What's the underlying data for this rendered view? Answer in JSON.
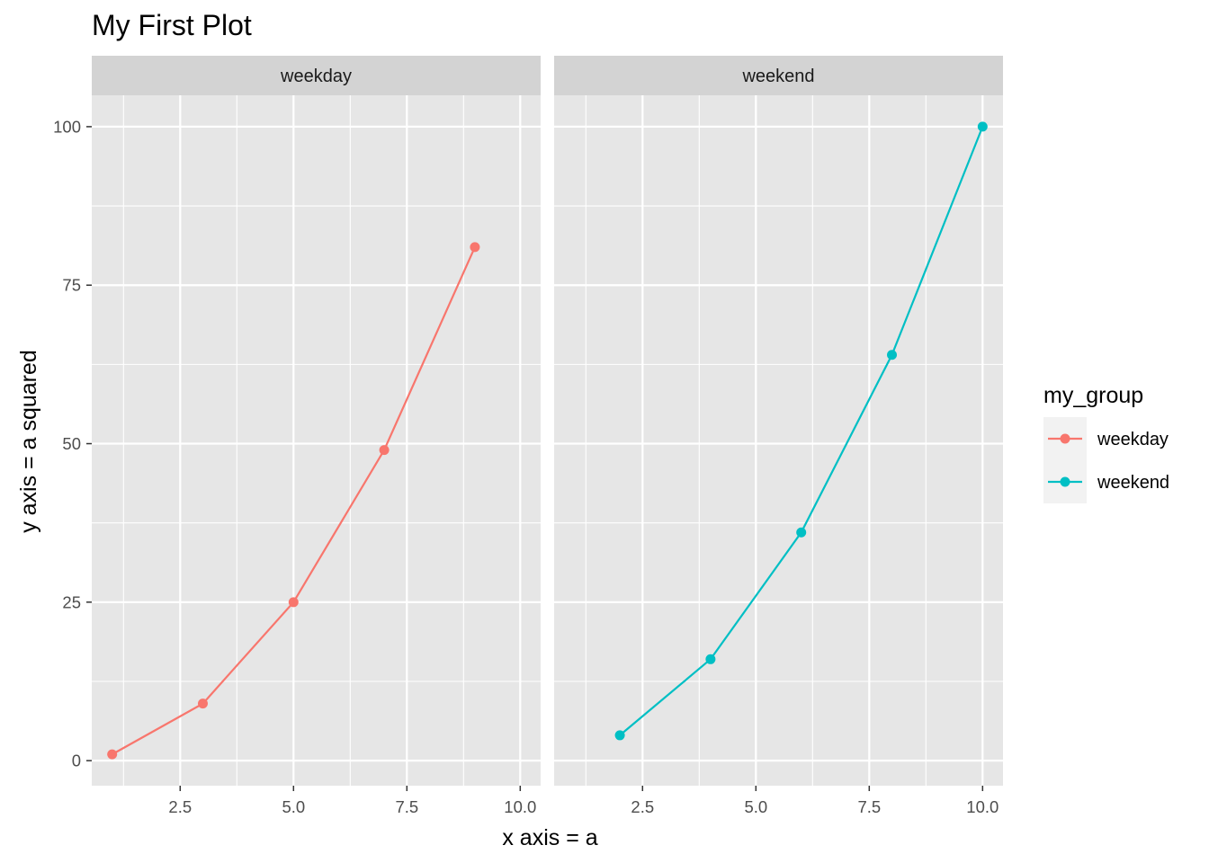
{
  "colors": {
    "panel_bg": "#e6e6e6",
    "strip_bg": "#d3d3d3",
    "grid": "#ffffff",
    "legend_key_bg": "#f2f2f2",
    "tick": "#333333"
  },
  "chart_data": {
    "type": "line",
    "title": "My First Plot",
    "xlabel": "x axis = a",
    "ylabel": "y axis = a squared",
    "xlim": [
      0.55,
      10.45
    ],
    "ylim": [
      -3.95,
      104.95
    ],
    "x_ticks": [
      2.5,
      5.0,
      7.5,
      10.0
    ],
    "x_tick_labels": [
      "2.5",
      "5.0",
      "7.5",
      "10.0"
    ],
    "x_minor": [
      1.25,
      3.75,
      6.25,
      8.75
    ],
    "y_ticks": [
      0,
      25,
      50,
      75,
      100
    ],
    "y_tick_labels": [
      "0",
      "25",
      "50",
      "75",
      "100"
    ],
    "y_minor": [
      12.5,
      37.5,
      62.5,
      87.5
    ],
    "grid": true,
    "legend": {
      "title": "my_group",
      "placement": "right",
      "entries": [
        {
          "label": "weekday",
          "color": "#F8766D"
        },
        {
          "label": "weekend",
          "color": "#00BFC4"
        }
      ]
    },
    "panels": [
      {
        "strip": "weekday",
        "series": [
          {
            "name": "weekday",
            "color": "#F8766D",
            "x": [
              1,
              3,
              5,
              7,
              9
            ],
            "y": [
              1,
              9,
              25,
              49,
              81
            ]
          }
        ]
      },
      {
        "strip": "weekend",
        "series": [
          {
            "name": "weekend",
            "color": "#00BFC4",
            "x": [
              2,
              4,
              6,
              8,
              10
            ],
            "y": [
              4,
              16,
              36,
              64,
              100
            ]
          }
        ]
      }
    ]
  }
}
